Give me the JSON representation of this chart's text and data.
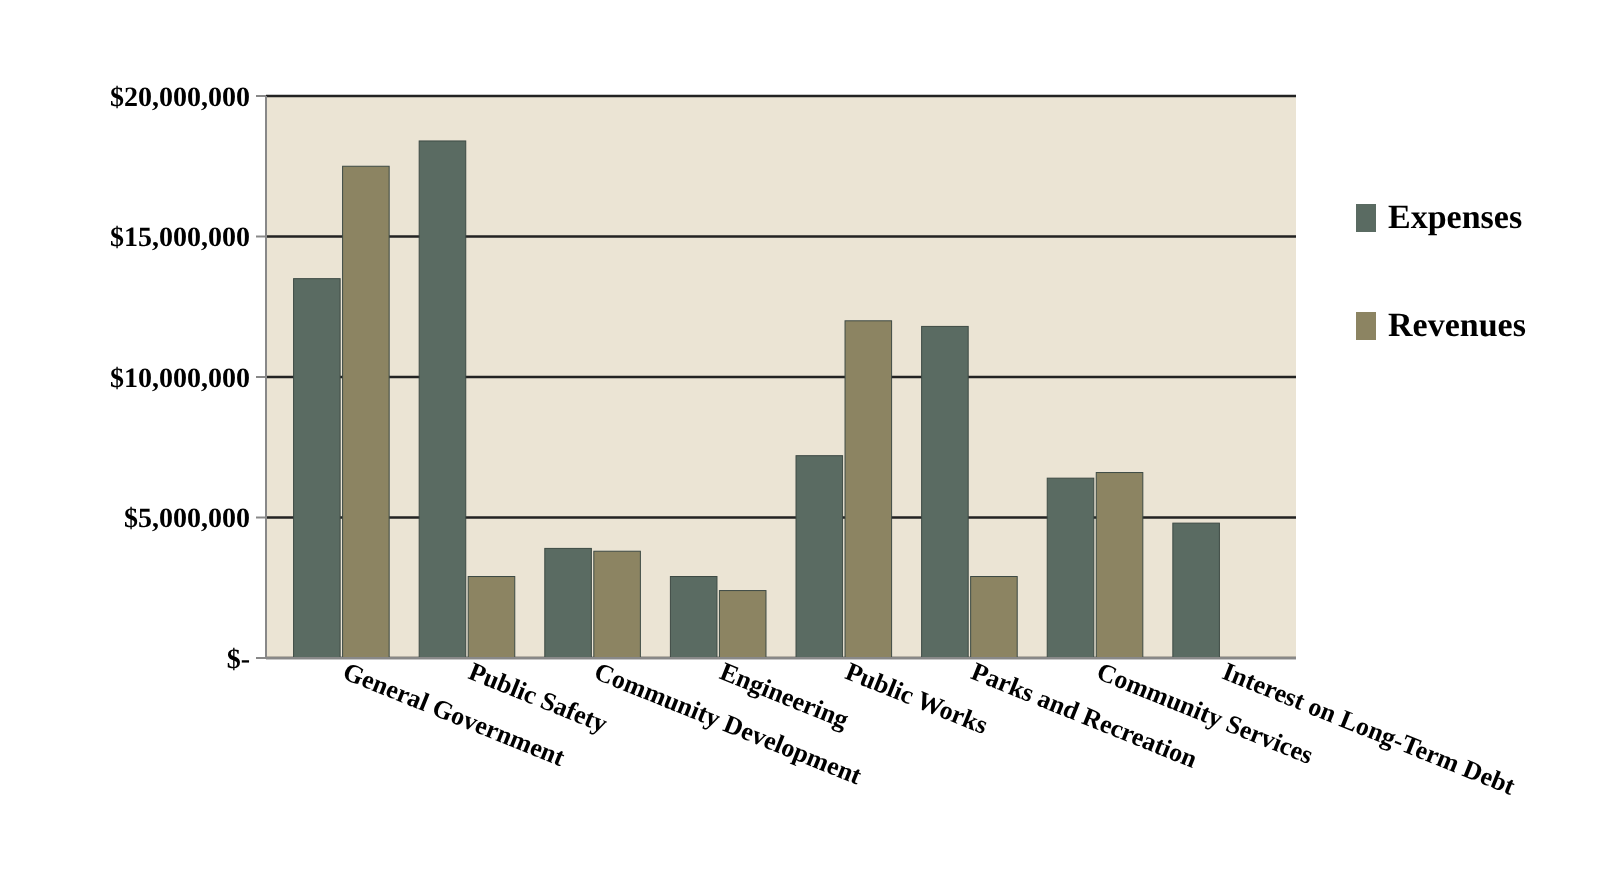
{
  "chart_data": {
    "type": "bar",
    "categories": [
      "General Government",
      "Public Safety",
      "Community Development",
      "Engineering",
      "Public Works",
      "Parks and Recreation",
      "Community Services",
      "Interest on Long-Term Debt"
    ],
    "series": [
      {
        "name": "Expenses",
        "color": "#5a6b62",
        "values": [
          13500000,
          18400000,
          3900000,
          2900000,
          7200000,
          11800000,
          6400000,
          4800000
        ]
      },
      {
        "name": "Revenues",
        "color": "#8c8462",
        "values": [
          17500000,
          2900000,
          3800000,
          2400000,
          12000000,
          2900000,
          6600000,
          null
        ]
      }
    ],
    "ylim": [
      0,
      20000000
    ],
    "yticks": [
      {
        "value": 0,
        "label": "$-"
      },
      {
        "value": 5000000,
        "label": "$5,000,000"
      },
      {
        "value": 10000000,
        "label": "$10,000,000"
      },
      {
        "value": 15000000,
        "label": "$15,000,000"
      },
      {
        "value": 20000000,
        "label": "$20,000,000"
      }
    ],
    "grid": "y",
    "legend": "right"
  }
}
